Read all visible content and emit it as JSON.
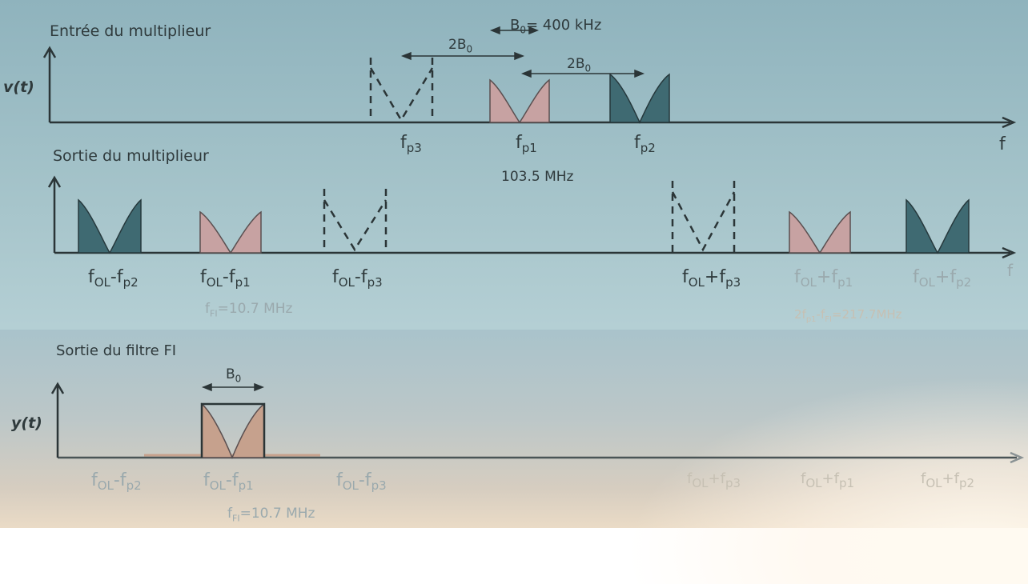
{
  "section1": {
    "title": "Entrée du multiplieur",
    "y_axis": "v(t)",
    "x_axis": "f",
    "bandwidth": {
      "symbol": "B",
      "sub": "0",
      "value": "= 400 kHz"
    },
    "double_bw": {
      "prefix": "2B",
      "sub": "0"
    },
    "double_bw2": {
      "prefix": "2B",
      "sub": "0"
    },
    "labels": [
      {
        "base": "f",
        "sub": "p3"
      },
      {
        "base": "f",
        "sub": "p1"
      },
      {
        "base": "f",
        "sub": "p2"
      }
    ],
    "freq_note": "103.5 MHz"
  },
  "section2": {
    "title": "Sortie du multiplieur",
    "x_axis": "f",
    "labels": [
      {
        "base": "f",
        "sub": "OL",
        "op": "-f",
        "sub2": "p2"
      },
      {
        "base": "f",
        "sub": "OL",
        "op": "-f",
        "sub2": "p1"
      },
      {
        "base": "f",
        "sub": "OL",
        "op": "-f",
        "sub2": "p3"
      },
      {
        "base": "f",
        "sub": "OL",
        "op": "+f",
        "sub2": "p3"
      },
      {
        "base": "f",
        "sub": "OL",
        "op": "+f",
        "sub2": "p1"
      },
      {
        "base": "f",
        "sub": "OL",
        "op": "+f",
        "sub2": "p2"
      }
    ],
    "fi_note": {
      "base": "f",
      "sub": "FI",
      "rest": "=10.7 MHz"
    },
    "sum_note": {
      "pre": "2f",
      "sub1": "p1",
      "mid": "-f",
      "sub2": "FI",
      "rest": "=217.7MHz"
    }
  },
  "section3": {
    "title": "Sortie du filtre FI",
    "y_axis": "y(t)",
    "bandwidth": {
      "symbol": "B",
      "sub": "0"
    },
    "labels": [
      {
        "base": "f",
        "sub": "OL",
        "op": "-f",
        "sub2": "p2"
      },
      {
        "base": "f",
        "sub": "OL",
        "op": "-f",
        "sub2": "p1"
      },
      {
        "base": "f",
        "sub": "OL",
        "op": "-f",
        "sub2": "p3"
      },
      {
        "base": "f",
        "sub": "OL",
        "op": "+f",
        "sub2": "p3"
      },
      {
        "base": "f",
        "sub": "OL",
        "op": "+f",
        "sub2": "p1"
      },
      {
        "base": "f",
        "sub": "OL",
        "op": "+f",
        "sub2": "p2"
      }
    ],
    "fi_note": {
      "base": "f",
      "sub": "FI",
      "rest": "=10.7 MHz"
    }
  },
  "colors": {
    "axis": "#2b3537",
    "pink_fill": "#c7a2a2",
    "teal_fill": "#3f6a72",
    "band_fill": "#c6a18d"
  }
}
